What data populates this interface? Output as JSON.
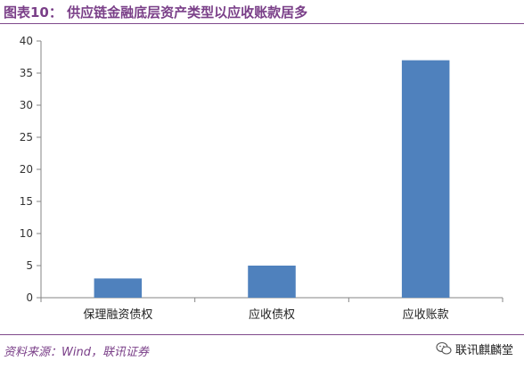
{
  "header": {
    "title": "图表10：    供应链金融底层资产类型以应收账款居多"
  },
  "chart_data": {
    "type": "bar",
    "categories": [
      "保理融资债权",
      "应收债权",
      "应收账款"
    ],
    "values": [
      3,
      5,
      37
    ],
    "ylim": [
      0,
      40
    ],
    "yticks": [
      0,
      5,
      10,
      15,
      20,
      25,
      30,
      35,
      40
    ],
    "bar_color": "#4f81bd",
    "grid": false,
    "legend": "none"
  },
  "footer": {
    "source": "资料来源：Wind，联讯证券",
    "watermark": "联讯麒麟堂",
    "watermark_icon": "wechat-icon"
  }
}
